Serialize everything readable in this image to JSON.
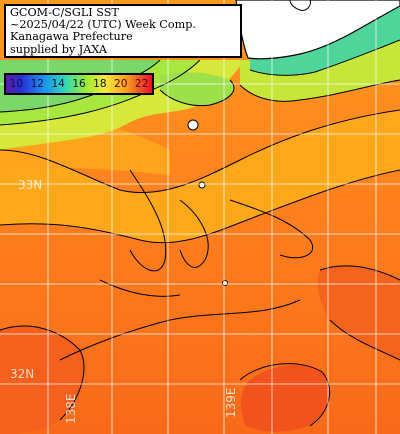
{
  "title": {
    "line1": "GCOM-C/SGLI SST",
    "line2": "~2025/04/22 (UTC) Week Comp.",
    "line3": "Kanagawa Prefecture",
    "line4": "supplied by JAXA"
  },
  "legend": {
    "labels": [
      "10",
      "12",
      "14",
      "16",
      "18",
      "20",
      "22"
    ],
    "colors": [
      "#5b1fa8",
      "#2a2cd6",
      "#1a8ff0",
      "#2fd6b8",
      "#9ded2f",
      "#f6e93a",
      "#f7a21c",
      "#f0392a"
    ]
  },
  "grid": {
    "lat_labels": [
      "33N",
      "32N"
    ],
    "lon_labels": [
      "138E",
      "139E"
    ]
  },
  "colors": {
    "land": "#ffffff",
    "coast_line": "#000000",
    "grid_line": "#ffffff",
    "sst_warm": "#ff7a1c",
    "sst_hot": "#f04a1c",
    "sst_mid": "#ffb21a",
    "sst_cool": "#c8ec3a",
    "sst_cold": "#3fd8a8"
  }
}
